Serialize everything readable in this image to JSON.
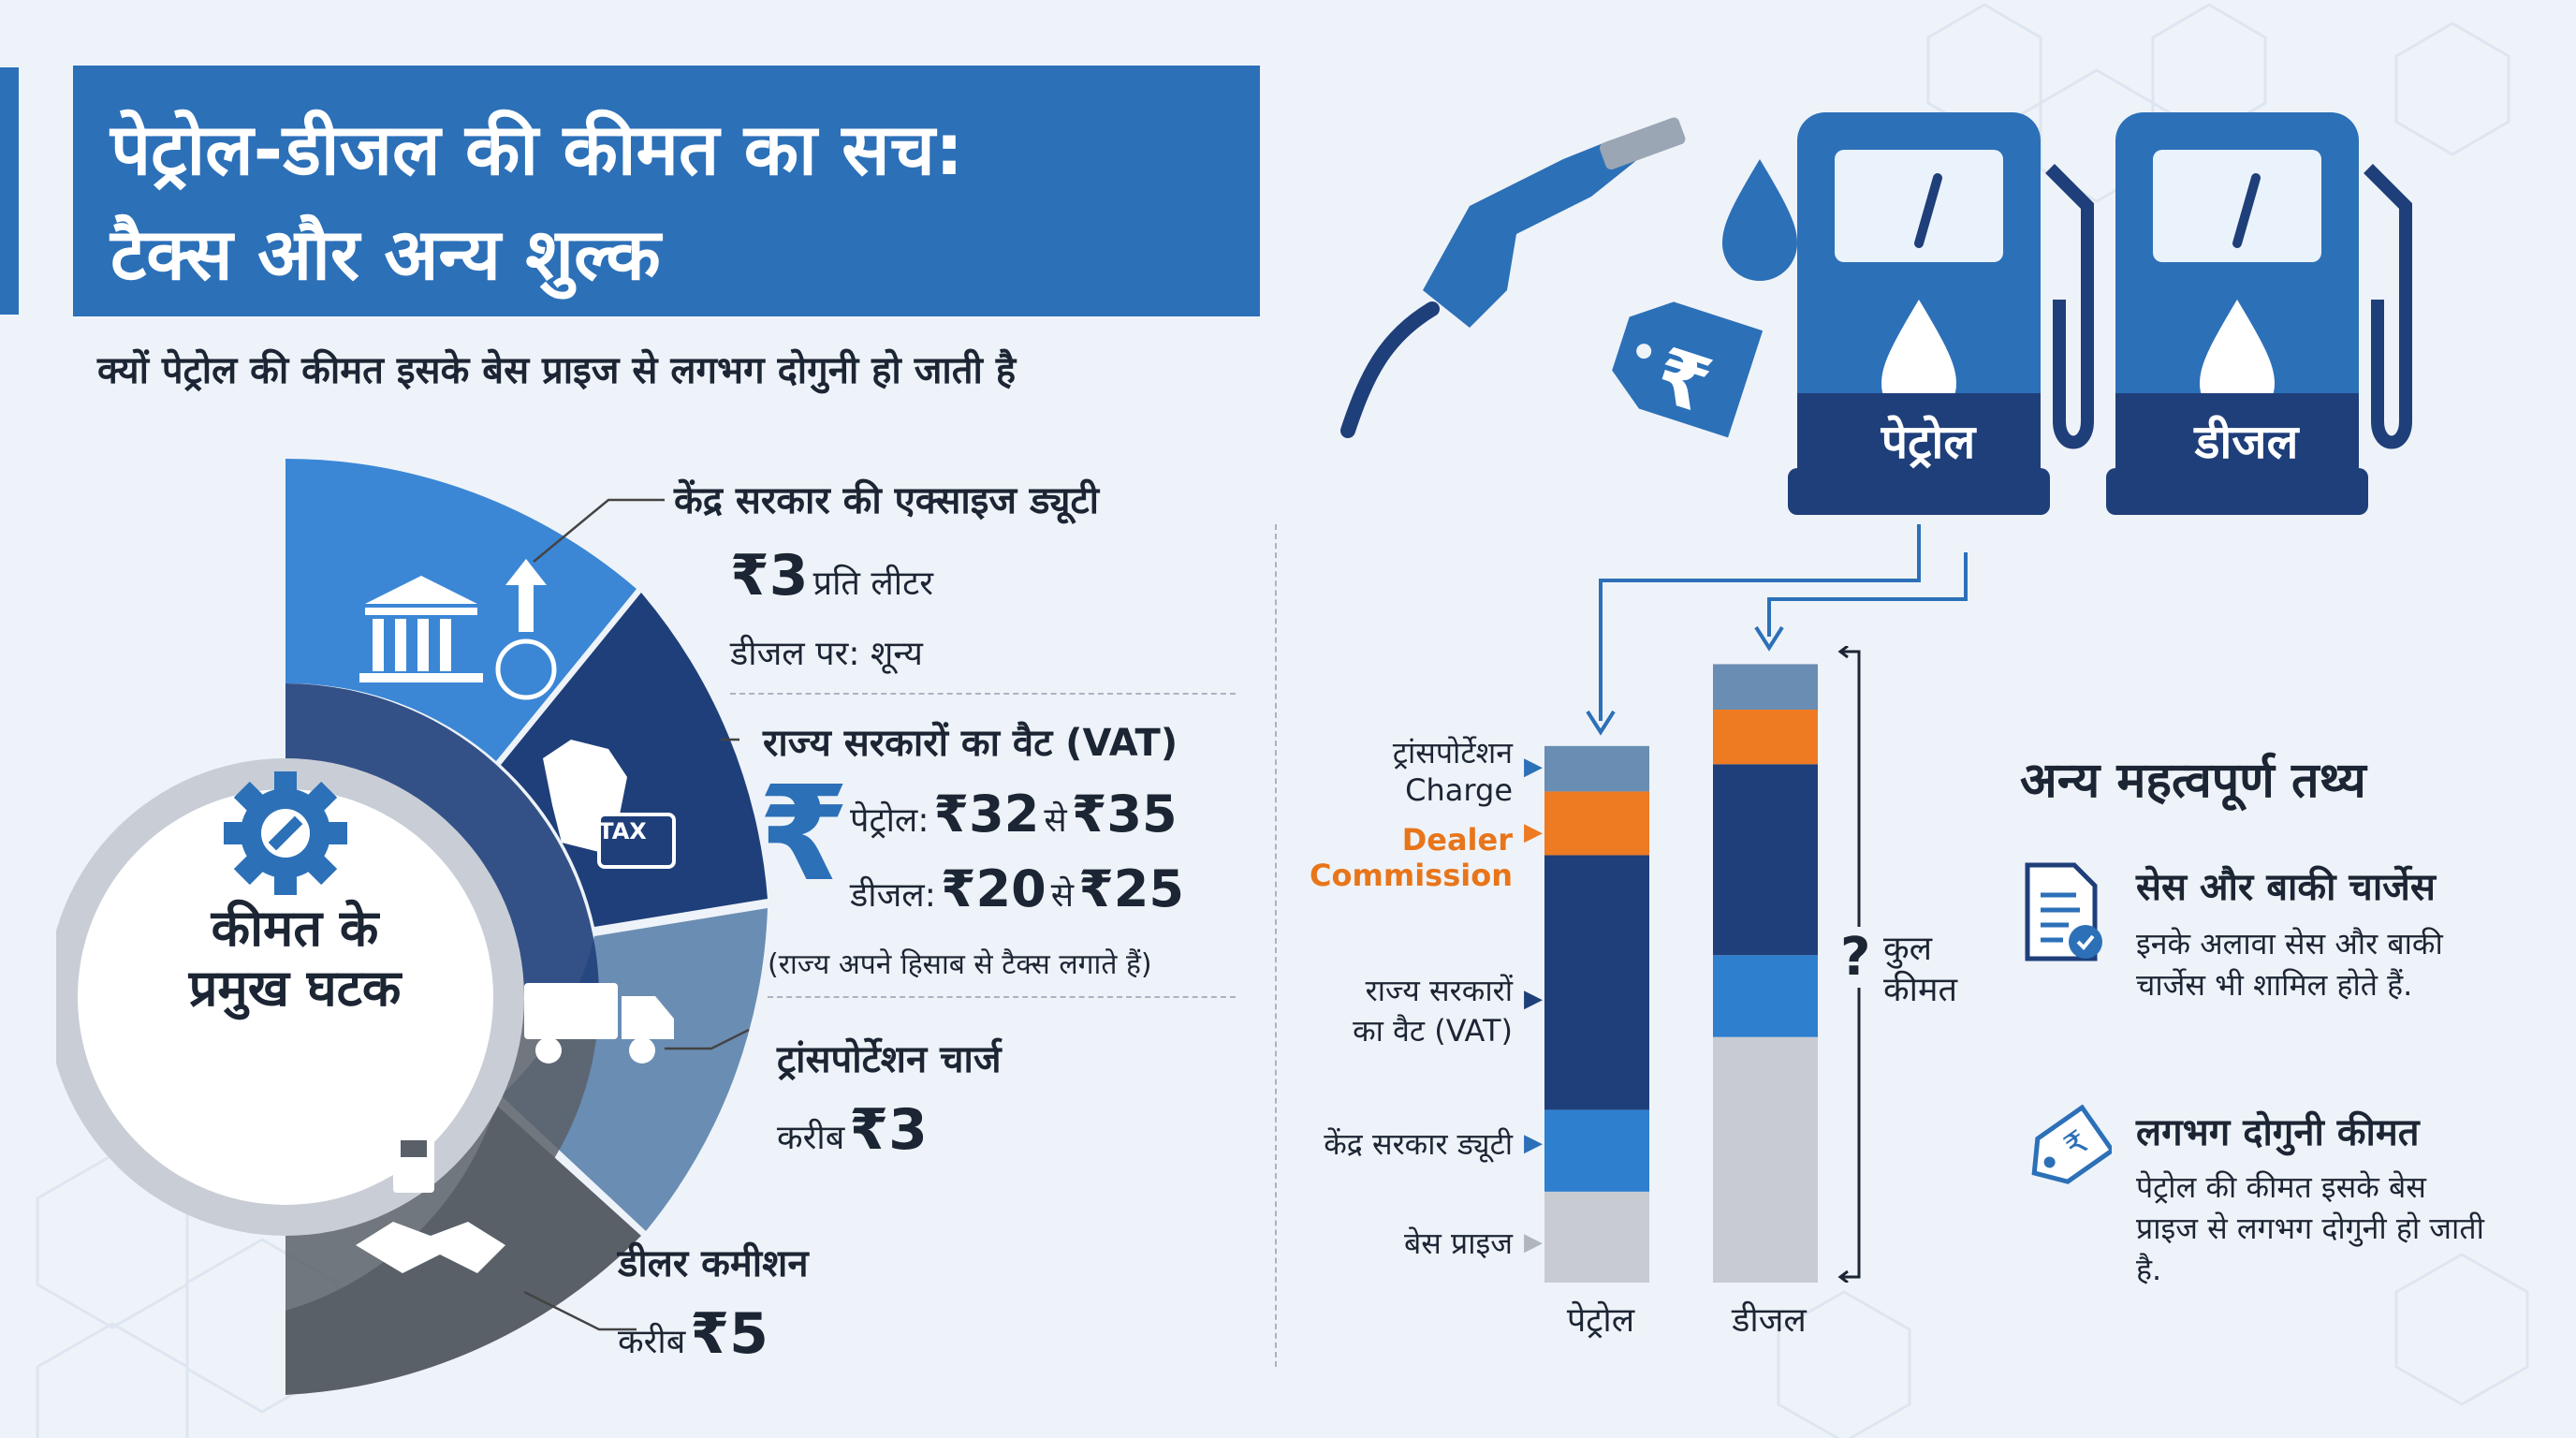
{
  "title": {
    "line1": "पेट्रोल-डीजल की कीमत का सच:",
    "line2": "टैक्स और अन्य शुल्क"
  },
  "subtitle": "क्यों पेट्रोल की कीमत इसके बेस प्राइज से लगभग दोगुनी हो जाती है",
  "hub_label": {
    "line1": "कीमत के",
    "line2": "प्रमुख घटक"
  },
  "segments": {
    "excise": {
      "heading": "केंद्र सरकार की एक्साइज ड्यूटी",
      "amount": "₹3",
      "unit": "प्रति लीटर",
      "diesel_note": "डीजल पर: शून्य"
    },
    "vat": {
      "heading": "राज्य सरकारों का वैट (VAT)",
      "petrol_label": "पेट्रोल:",
      "petrol_from": "₹32",
      "petrol_to": "₹35",
      "diesel_label": "डीजल:",
      "diesel_from": "₹20",
      "diesel_to": "₹25",
      "range_word": "से",
      "note": "(राज्य अपने हिसाब से टैक्स लगाते हैं)",
      "tax_tag": "TAX"
    },
    "transport": {
      "heading": "ट्रांसपोर्टेशन चार्ज",
      "approx": "करीब",
      "amount": "₹3"
    },
    "dealer": {
      "heading": "डीलर कमीशन",
      "approx": "करीब",
      "amount": "₹5"
    }
  },
  "pumps": {
    "petrol": "पेट्रोल",
    "diesel": "डीजल",
    "rupee_tag": "₹"
  },
  "chart_data": {
    "type": "bar",
    "stacked": true,
    "categories": [
      "पेट्रोल",
      "डीजल"
    ],
    "series": [
      {
        "name": "बेस प्राइज",
        "values": [
          10,
          27
        ],
        "color": "#c8ccd2"
      },
      {
        "name": "केंद्र सरकार ड्यूटी",
        "values": [
          9,
          9
        ],
        "color": "#2f7fcf"
      },
      {
        "name": "राज्य सरकारों का वैट (VAT)",
        "values": [
          28,
          21
        ],
        "color": "#1f3f7a"
      },
      {
        "name": "Dealer Commission",
        "values": [
          7,
          6
        ],
        "color": "#ee7a21"
      },
      {
        "name": "ट्रांसपोर्टेशन Charge",
        "values": [
          5,
          5
        ],
        "color": "#6a8db3"
      }
    ],
    "labels": {
      "transport_1": "ट्रांसपोर्टेशन",
      "transport_2": "Charge",
      "dealer_1": "Dealer",
      "dealer_2": "Commission",
      "vat_1": "राज्य सरकारों",
      "vat_2": "का वैट (VAT)",
      "duty": "केंद्र सरकार ड्यूटी",
      "base": "बेस प्राइज"
    },
    "total_label": {
      "mark": "?",
      "line1": "कुल",
      "line2": "कीमत"
    }
  },
  "facts": {
    "title": "अन्य महत्वपूर्ण तथ्य",
    "items": [
      {
        "heading": "सेस और बाकी चार्जेस",
        "text": "इनके अलावा सेस और बाकी चार्जेस भी शामिल होते हैं."
      },
      {
        "heading": "लगभग दोगुनी कीमत",
        "text": "पेट्रोल की कीमत इसके बेस प्राइज से लगभग दोगुनी हो जाती है."
      }
    ]
  },
  "colors": {
    "brand_blue": "#2c70b8",
    "navy": "#1f3f7a",
    "orange": "#ee7a21",
    "slate": "#6a8db3",
    "grey": "#c8ccd2"
  }
}
